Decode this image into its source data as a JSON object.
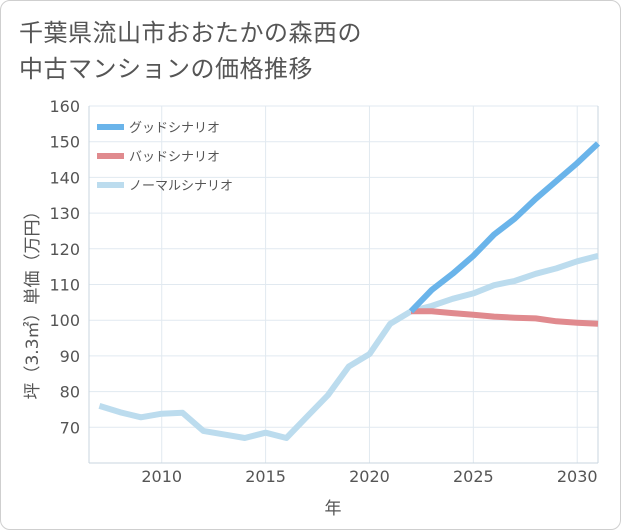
{
  "title_lines": [
    "千葉県流山市おおたかの森西の",
    "中古マンションの価格推移"
  ],
  "chart_data": {
    "type": "line",
    "title": "千葉県流山市おおたかの森西の中古マンションの価格推移",
    "xlabel": "年",
    "ylabel": "坪（3.3㎡）単価（万円）",
    "xlim": [
      2006.5,
      2031
    ],
    "ylim": [
      60,
      160
    ],
    "xticks": [
      2010,
      2015,
      2020,
      2025,
      2030
    ],
    "yticks": [
      70,
      80,
      90,
      100,
      110,
      120,
      130,
      140,
      150,
      160
    ],
    "grid": true,
    "legend_position": "top-left",
    "series": [
      {
        "name": "グッドシナリオ",
        "color": "#6ab4ea",
        "x": [
          2022,
          2023,
          2024,
          2025,
          2026,
          2027,
          2028,
          2029,
          2030,
          2031
        ],
        "y": [
          102.5,
          108.5,
          113,
          118,
          124,
          128.5,
          134,
          139,
          144,
          149.5
        ]
      },
      {
        "name": "バッドシナリオ",
        "color": "#e08a8e",
        "x": [
          2022,
          2023,
          2024,
          2025,
          2026,
          2027,
          2028,
          2029,
          2030,
          2031
        ],
        "y": [
          102.5,
          102.5,
          102,
          101.5,
          101,
          100.7,
          100.5,
          99.7,
          99.3,
          99
        ]
      },
      {
        "name": "ノーマルシナリオ",
        "color": "#bcdcee",
        "x": [
          2007,
          2008,
          2009,
          2010,
          2011,
          2012,
          2013,
          2014,
          2015,
          2016,
          2017,
          2018,
          2019,
          2020,
          2021,
          2022,
          2023,
          2024,
          2025,
          2026,
          2027,
          2028,
          2029,
          2030,
          2031
        ],
        "y": [
          76,
          74.2,
          72.8,
          73.8,
          74.1,
          69,
          68,
          67,
          68.5,
          67,
          73,
          79,
          87,
          90.5,
          99,
          102.5,
          104,
          106,
          107.5,
          109.8,
          111,
          113,
          114.5,
          116.5,
          118
        ]
      }
    ]
  }
}
